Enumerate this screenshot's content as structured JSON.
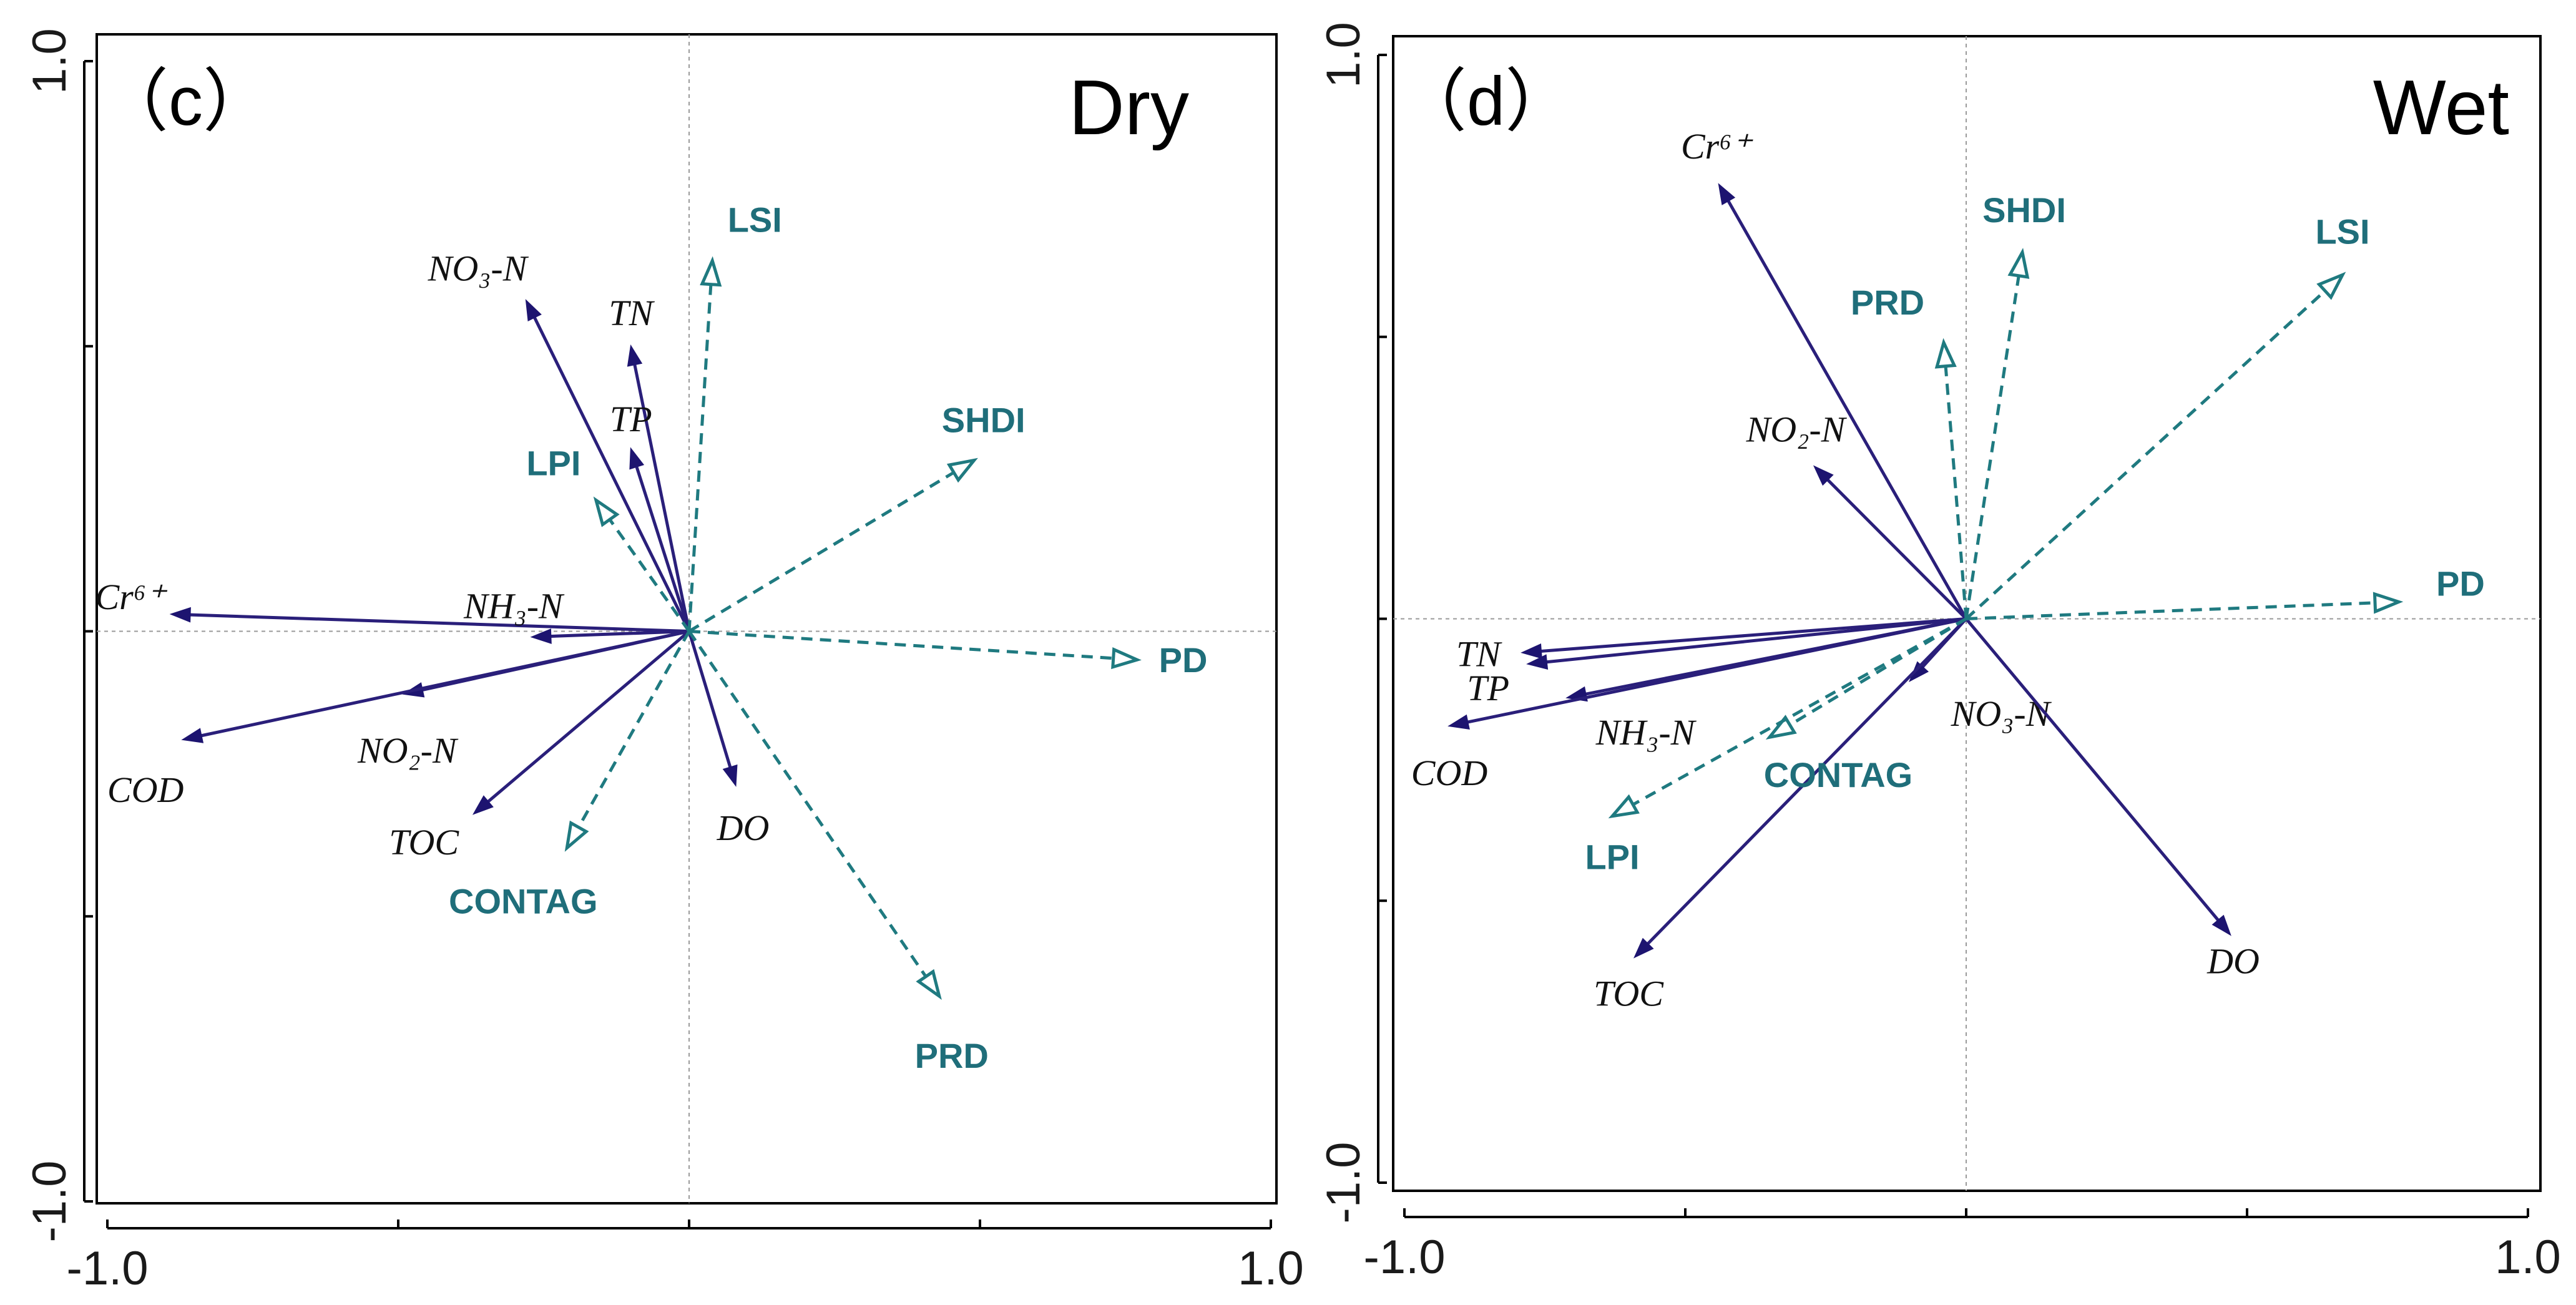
{
  "chart_data": [
    {
      "type": "scatter",
      "panel_label": "（c）",
      "title": "Dry",
      "xlim": [
        -1.0,
        1.0
      ],
      "ylim": [
        -1.0,
        1.0
      ],
      "x_tick_labels": [
        "-1.0",
        "1.0"
      ],
      "y_tick_labels": [
        "1.0",
        "-1.0"
      ],
      "grid": false,
      "environment_vectors": [
        {
          "label": "NO₃-N",
          "x": -0.28,
          "y": 0.58
        },
        {
          "label": "TN",
          "x": -0.1,
          "y": 0.5
        },
        {
          "label": "TP",
          "x": -0.1,
          "y": 0.32
        },
        {
          "label": "Cr⁶⁺",
          "x": -0.89,
          "y": 0.03
        },
        {
          "label": "NH₃-N",
          "x": -0.27,
          "y": -0.01
        },
        {
          "label": "NO₂-N",
          "x": -0.49,
          "y": -0.11
        },
        {
          "label": "COD",
          "x": -0.87,
          "y": -0.19
        },
        {
          "label": "TOC",
          "x": -0.37,
          "y": -0.32
        },
        {
          "label": "DO",
          "x": 0.08,
          "y": -0.27
        }
      ],
      "landscape_vectors": [
        {
          "label": "LSI",
          "x": 0.04,
          "y": 0.65
        },
        {
          "label": "LPI",
          "x": -0.16,
          "y": 0.23
        },
        {
          "label": "SHDI",
          "x": 0.49,
          "y": 0.3
        },
        {
          "label": "PD",
          "x": 0.77,
          "y": -0.05
        },
        {
          "label": "CONTAG",
          "x": -0.21,
          "y": -0.38
        },
        {
          "label": "PRD",
          "x": 0.43,
          "y": -0.64
        }
      ]
    },
    {
      "type": "scatter",
      "panel_label": "（d）",
      "title": "Wet",
      "xlim": [
        -1.0,
        1.0
      ],
      "ylim": [
        -1.0,
        1.0
      ],
      "x_tick_labels": [
        "-1.0",
        "1.0"
      ],
      "y_tick_labels": [
        "1.0",
        "-1.0"
      ],
      "grid": false,
      "environment_vectors": [
        {
          "label": "Cr⁶⁺",
          "x": -0.44,
          "y": 0.77
        },
        {
          "label": "NO₂-N",
          "x": -0.27,
          "y": 0.27
        },
        {
          "label": "TN",
          "x": -0.79,
          "y": -0.06
        },
        {
          "label": "TP",
          "x": -0.78,
          "y": -0.08
        },
        {
          "label": "NH₃-N",
          "x": -0.71,
          "y": -0.14
        },
        {
          "label": "COD",
          "x": -0.92,
          "y": -0.19
        },
        {
          "label": "NO₃-N",
          "x": -0.1,
          "y": -0.11
        },
        {
          "label": "TOC",
          "x": -0.59,
          "y": -0.6
        },
        {
          "label": "DO",
          "x": 0.47,
          "y": -0.56
        }
      ],
      "landscape_vectors": [
        {
          "label": "SHDI",
          "x": 0.1,
          "y": 0.65
        },
        {
          "label": "PRD",
          "x": -0.04,
          "y": 0.49
        },
        {
          "label": "LSI",
          "x": 0.67,
          "y": 0.61
        },
        {
          "label": "PD",
          "x": 0.77,
          "y": 0.03
        },
        {
          "label": "CONTAG",
          "x": -0.35,
          "y": -0.21
        },
        {
          "label": "LPI",
          "x": -0.63,
          "y": -0.35
        }
      ]
    }
  ]
}
